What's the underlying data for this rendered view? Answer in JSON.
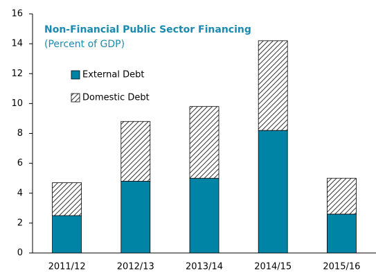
{
  "chart_data": {
    "type": "stacked-bar",
    "title": "Non-Financial Public Sector Financing",
    "subtitle": "(Percent of GDP)",
    "categories": [
      "2011/12",
      "2012/13",
      "2013/14",
      "2014/15",
      "2015/16"
    ],
    "series": [
      {
        "name": "External Debt",
        "color": "#0084a6",
        "values": [
          2.5,
          4.8,
          5.0,
          8.2,
          2.6
        ]
      },
      {
        "name": "Domestic Debt",
        "color": "#333333",
        "pattern": "diagonal-hatch",
        "values": [
          2.2,
          4.0,
          4.8,
          6.0,
          2.4
        ]
      }
    ],
    "ylim": [
      0,
      16
    ],
    "yticks": [
      0,
      2,
      4,
      6,
      8,
      10,
      12,
      14,
      16
    ],
    "grid": false,
    "legend": "upper-left"
  }
}
